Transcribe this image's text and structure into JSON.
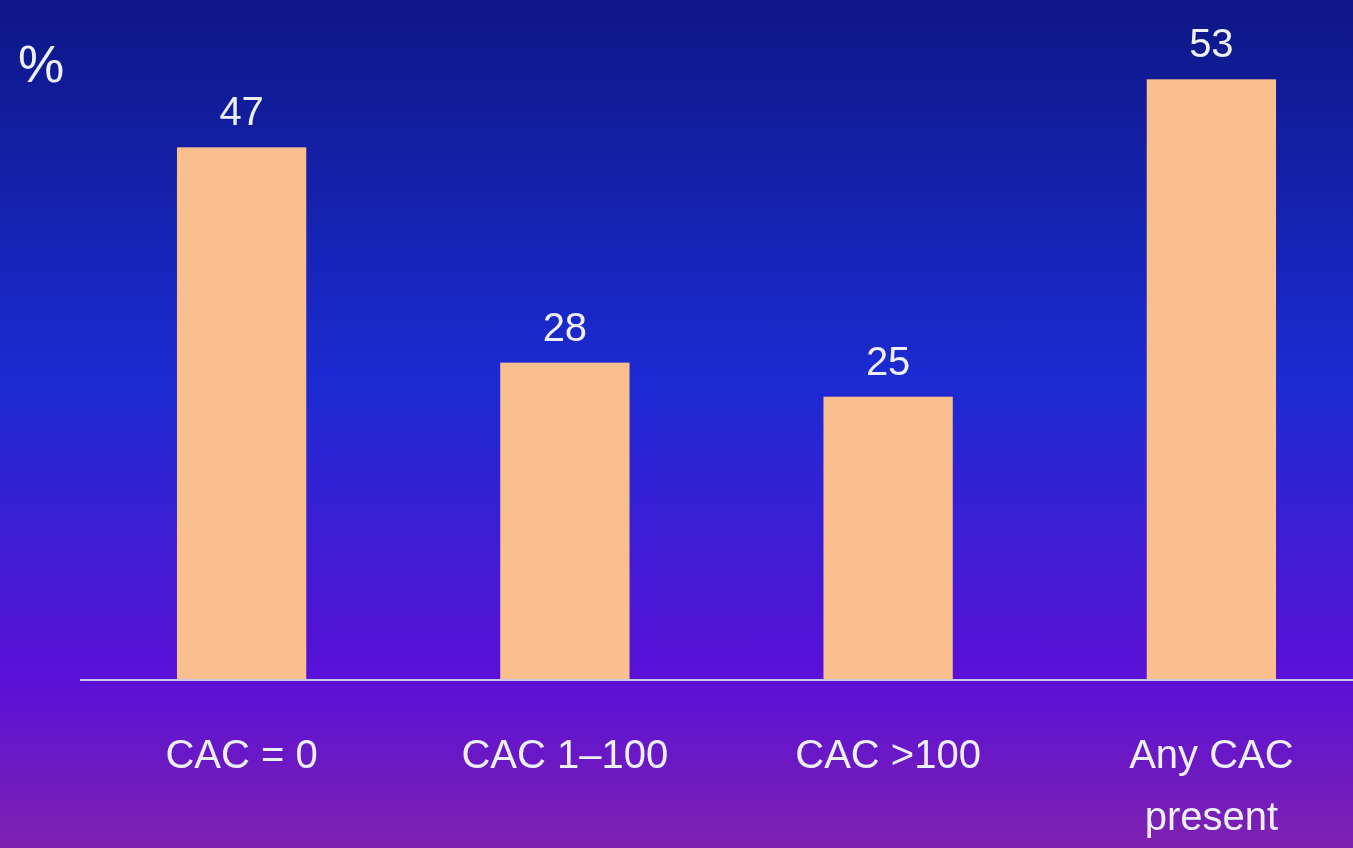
{
  "chart_data": {
    "type": "bar",
    "ylabel": "%",
    "categories": [
      "CAC = 0",
      "CAC 1–100",
      "CAC >100",
      "Any CAC present"
    ],
    "values": [
      47,
      28,
      25,
      53
    ],
    "color": "#f9bf8f",
    "ylim": [
      0,
      60
    ],
    "data_labels": true
  }
}
